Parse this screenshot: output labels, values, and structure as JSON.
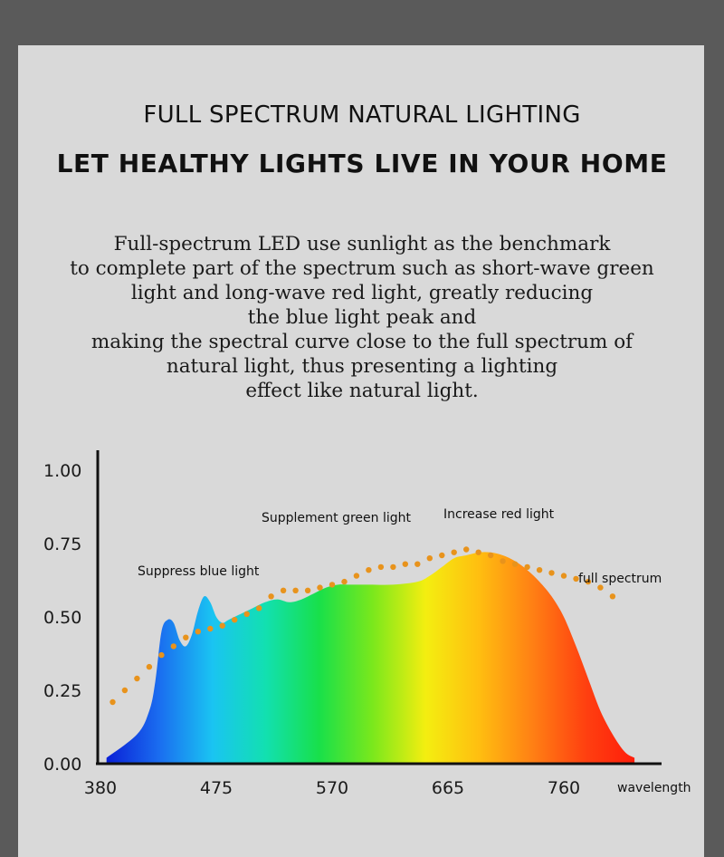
{
  "heading": "FULL SPECTRUM NATURAL LIGHTING",
  "subheading": "LET HEALTHY LIGHTS LIVE IN YOUR HOME",
  "description_lines": [
    "Full-spectrum LED use sunlight as the benchmark",
    "to complete part of the spectrum such as short-wave green",
    "light and long-wave red light, greatly reducing",
    "the blue light peak and",
    "making the spectral curve close to the full spectrum of",
    "natural light, thus presenting a lighting",
    "effect like natural light."
  ],
  "chart_data": {
    "type": "area",
    "xlabel": "wavelength",
    "ylabel": "",
    "xlim": [
      380,
      830
    ],
    "ylim": [
      0,
      1.0
    ],
    "x_ticks": [
      "380",
      "475",
      "570",
      "665",
      "760"
    ],
    "y_ticks": [
      "1.00",
      "0.75",
      "0.50",
      "0.25",
      "0.00"
    ],
    "annotations": {
      "blue": "Suppress blue light",
      "green": "Supplement green light",
      "red": "Increase red light",
      "full": "full spectrum"
    },
    "series": [
      {
        "style": "rainbow-gradient-fill",
        "x": [
          385,
          410,
          420,
          425,
          430,
          435,
          440,
          445,
          450,
          455,
          460,
          465,
          470,
          475,
          480,
          485,
          495,
          505,
          515,
          525,
          535,
          545,
          555,
          565,
          575,
          585,
          600,
          620,
          640,
          650,
          660,
          670,
          680,
          690,
          700,
          710,
          720,
          730,
          740,
          750,
          760,
          770,
          780,
          790,
          800,
          810,
          818
        ],
        "y": [
          0.02,
          0.1,
          0.18,
          0.28,
          0.45,
          0.49,
          0.48,
          0.42,
          0.4,
          0.44,
          0.52,
          0.57,
          0.55,
          0.5,
          0.48,
          0.49,
          0.51,
          0.53,
          0.55,
          0.56,
          0.55,
          0.56,
          0.58,
          0.6,
          0.61,
          0.61,
          0.61,
          0.61,
          0.62,
          0.64,
          0.67,
          0.7,
          0.71,
          0.72,
          0.72,
          0.71,
          0.69,
          0.66,
          0.62,
          0.57,
          0.5,
          0.4,
          0.29,
          0.18,
          0.1,
          0.04,
          0.02
        ]
      },
      {
        "name": "full spectrum",
        "style": "orange-dotted",
        "color": "#e8931c",
        "x": [
          390,
          400,
          410,
          420,
          430,
          440,
          450,
          460,
          470,
          480,
          490,
          500,
          510,
          520,
          530,
          540,
          550,
          560,
          570,
          580,
          590,
          600,
          610,
          620,
          630,
          640,
          650,
          660,
          670,
          680,
          690,
          700,
          710,
          720,
          730,
          740,
          750,
          760,
          770,
          780,
          790,
          800
        ],
        "y": [
          0.21,
          0.25,
          0.29,
          0.33,
          0.37,
          0.4,
          0.43,
          0.45,
          0.46,
          0.47,
          0.49,
          0.51,
          0.53,
          0.57,
          0.59,
          0.59,
          0.59,
          0.6,
          0.61,
          0.62,
          0.64,
          0.66,
          0.67,
          0.67,
          0.68,
          0.68,
          0.7,
          0.71,
          0.72,
          0.73,
          0.72,
          0.71,
          0.69,
          0.68,
          0.67,
          0.66,
          0.65,
          0.64,
          0.63,
          0.62,
          0.6,
          0.57
        ]
      }
    ]
  }
}
